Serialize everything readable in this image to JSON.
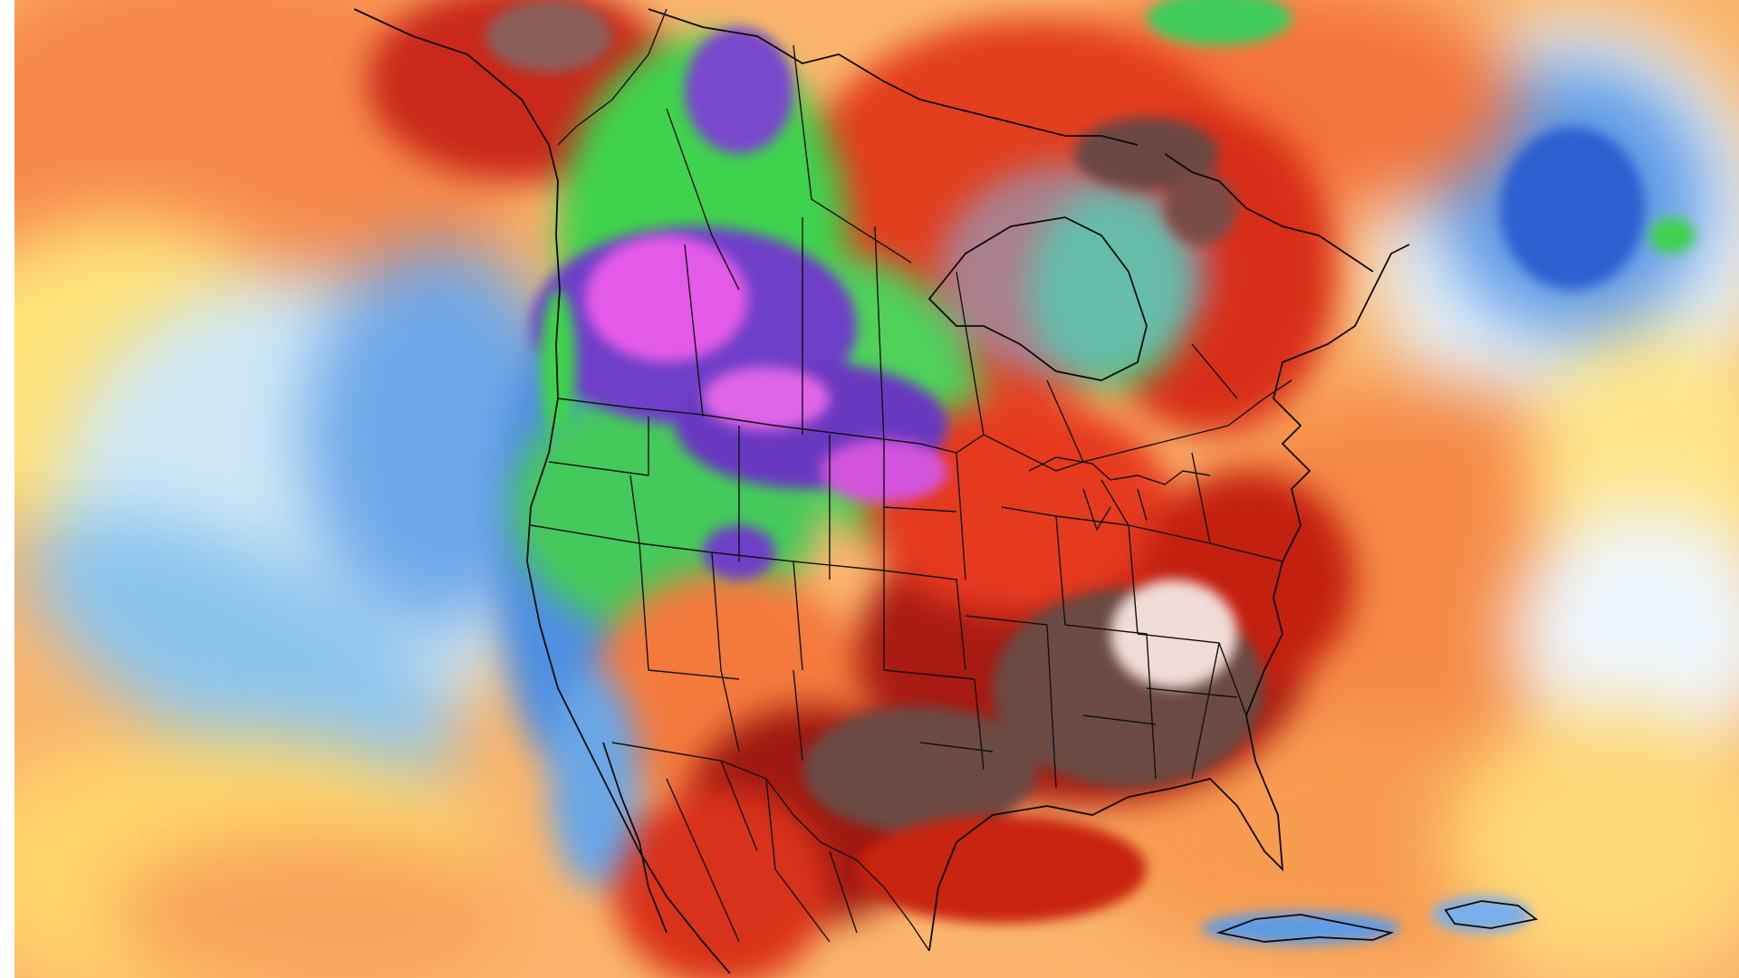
{
  "colors": {
    "background": "#ffffff",
    "ocean_orange": "#f7894a",
    "ocean_yellow": "#ffe27a",
    "pale_blue": "#cfe8f6",
    "light_blue": "#8cc4ee",
    "mid_blue": "#4f8fe0",
    "deep_blue": "#2f5fd0",
    "green": "#3fd24d",
    "purple": "#6e3fc8",
    "magenta": "#e45ae8",
    "red": "#e8341c",
    "dark_red": "#8f1010",
    "brown": "#6a4a42",
    "pale_pink": "#f1dcd8",
    "border": "#111111"
  }
}
